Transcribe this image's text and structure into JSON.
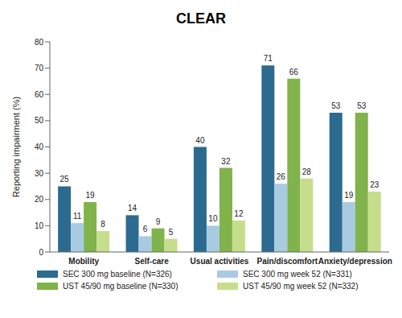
{
  "chart_data": {
    "type": "bar",
    "title": "CLEAR",
    "y_label": "Reporting impairment (%)",
    "categories": [
      "Mobility",
      "Self-care",
      "Usual activities",
      "Pain/discomfort",
      "Anxiety/depression"
    ],
    "series": [
      {
        "name": "SEC 300 mg baseline (N=326)",
        "color": "#2c6b8f",
        "values": [
          25,
          14,
          40,
          71,
          53
        ]
      },
      {
        "name": "SEC 300 mg week 52 (N=331)",
        "color": "#a8cbe2",
        "values": [
          11,
          6,
          10,
          26,
          19
        ]
      },
      {
        "name": "UST 45/90 mg baseline (N=330)",
        "color": "#80b34b",
        "values": [
          19,
          9,
          32,
          66,
          53
        ]
      },
      {
        "name": "UST 45/90 mg week 52 (N=332)",
        "color": "#c6de8c",
        "values": [
          8,
          5,
          12,
          28,
          23
        ]
      }
    ],
    "ylim": [
      0,
      80
    ],
    "yticks": [
      0,
      10,
      20,
      30,
      40,
      50,
      60,
      70,
      80
    ],
    "grid": false,
    "legend": "bottom",
    "data_labels": true
  }
}
